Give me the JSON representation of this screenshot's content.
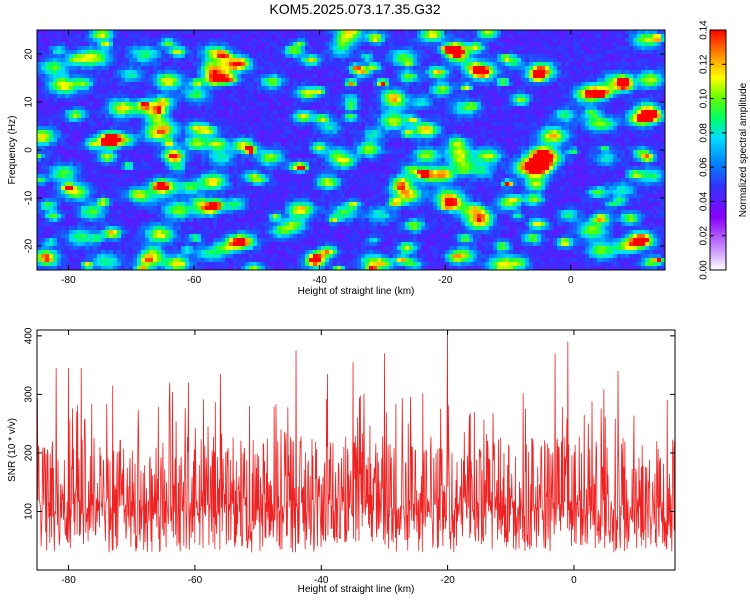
{
  "title": "KOM5.2025.073.17.35.G32",
  "chart_data": [
    {
      "type": "heatmap",
      "xlabel": "Height of straight line (km)",
      "ylabel": "Frequency (Hz)",
      "xlim": [
        -85,
        15
      ],
      "ylim": [
        -25,
        25
      ],
      "xticks": [
        "-80",
        "-60",
        "-40",
        "-20",
        "0"
      ],
      "xtick_values": [
        -80,
        -60,
        -40,
        -20,
        0
      ],
      "yticks": [
        "-20",
        "-10",
        "0",
        "10",
        "20"
      ],
      "ytick_values": [
        -20,
        -10,
        0,
        10,
        20
      ],
      "colorbar": {
        "label": "Normalized spectral amplitude",
        "range": [
          0,
          0.14
        ],
        "ticks": [
          "0.00",
          "0.02",
          "0.04",
          "0.06",
          "0.08",
          "0.10",
          "0.12",
          "0.14"
        ],
        "tick_values": [
          0,
          0.02,
          0.04,
          0.06,
          0.08,
          0.1,
          0.12,
          0.14
        ]
      },
      "colors": [
        "#ffffff",
        "#cc99ff",
        "#8800ff",
        "#3333ff",
        "#0088ff",
        "#00ddff",
        "#00ff66",
        "#66ff00",
        "#ffff00",
        "#ff8800",
        "#ff0000"
      ],
      "hotspots": [
        {
          "x": -51,
          "y": 0,
          "z": 0.13
        },
        {
          "x": -30,
          "y": 14,
          "z": 0.12
        },
        {
          "x": -35,
          "y": 14,
          "z": 0.1
        },
        {
          "x": -10,
          "y": -7,
          "z": 0.11
        },
        {
          "x": -37,
          "y": -25,
          "z": 0.09
        },
        {
          "x": 14,
          "y": -23,
          "z": 0.09
        },
        {
          "x": -77,
          "y": -24,
          "z": 0.08
        },
        {
          "x": -74,
          "y": 22,
          "z": 0.07
        },
        {
          "x": -20,
          "y": 21,
          "z": 0.07
        }
      ]
    },
    {
      "type": "line",
      "xlabel": "Height of straight line (km)",
      "ylabel": "SNR (10 * v/v)",
      "xlim": [
        -85,
        16
      ],
      "ylim": [
        0,
        410
      ],
      "xticks": [
        "-80",
        "-60",
        "-40",
        "-20",
        "0"
      ],
      "xtick_values": [
        -80,
        -60,
        -40,
        -20,
        0
      ],
      "yticks": [
        "100",
        "200",
        "300",
        "400"
      ],
      "ytick_values": [
        100,
        200,
        300,
        400
      ],
      "color": "#ee2222",
      "series_summary": {
        "typical_low": 30,
        "typical_high": 230,
        "max": 410,
        "max_at_x": -20
      },
      "peaks": [
        {
          "x": -82,
          "y": 345
        },
        {
          "x": -80,
          "y": 345
        },
        {
          "x": -78,
          "y": 345
        },
        {
          "x": -73,
          "y": 315
        },
        {
          "x": -64,
          "y": 320
        },
        {
          "x": -61,
          "y": 320
        },
        {
          "x": -56,
          "y": 335
        },
        {
          "x": -44,
          "y": 375
        },
        {
          "x": -39,
          "y": 335
        },
        {
          "x": -35,
          "y": 355
        },
        {
          "x": -30,
          "y": 370
        },
        {
          "x": -20,
          "y": 410
        },
        {
          "x": -3,
          "y": 370
        },
        {
          "x": -1,
          "y": 390
        },
        {
          "x": 7,
          "y": 340
        }
      ]
    }
  ]
}
